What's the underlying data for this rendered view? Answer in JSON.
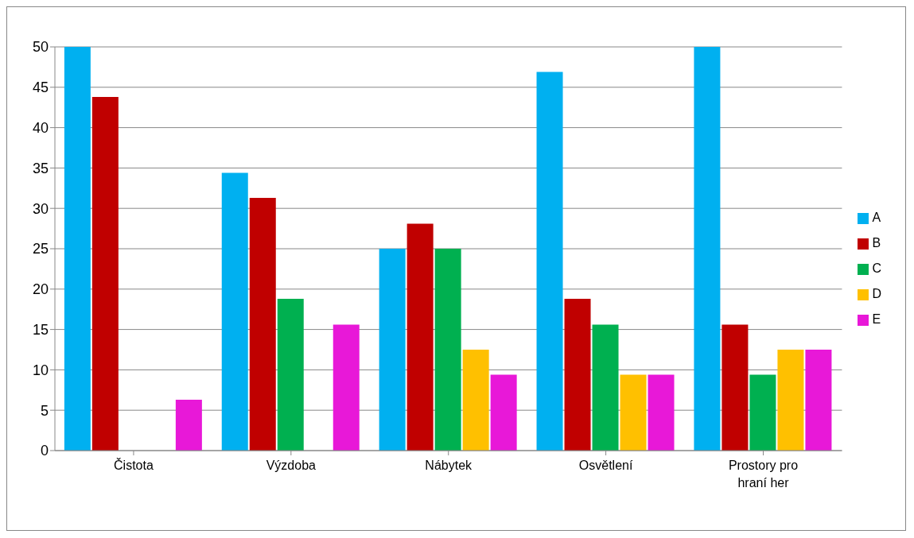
{
  "chart_data": {
    "type": "bar",
    "categories": [
      "Čistota",
      "Výzdoba",
      "Nábytek",
      "Osvětlení",
      "Prostory pro hraní her"
    ],
    "series": [
      {
        "name": "A",
        "color": "#00b0f0",
        "values": [
          50,
          34.4,
          25,
          46.9,
          50
        ]
      },
      {
        "name": "B",
        "color": "#c00000",
        "values": [
          43.8,
          31.3,
          28.1,
          18.8,
          15.6
        ]
      },
      {
        "name": "C",
        "color": "#00b050",
        "values": [
          0,
          18.8,
          25,
          15.6,
          9.4
        ]
      },
      {
        "name": "D",
        "color": "#ffc000",
        "values": [
          0,
          0,
          12.5,
          9.4,
          12.5
        ]
      },
      {
        "name": "E",
        "color": "#e818d8",
        "values": [
          6.3,
          15.6,
          9.4,
          9.4,
          12.5
        ]
      }
    ],
    "ylim": [
      0,
      50
    ],
    "yticks": [
      0,
      5,
      10,
      15,
      20,
      25,
      30,
      35,
      40,
      45,
      50
    ],
    "grid": "y",
    "legend": "right"
  }
}
